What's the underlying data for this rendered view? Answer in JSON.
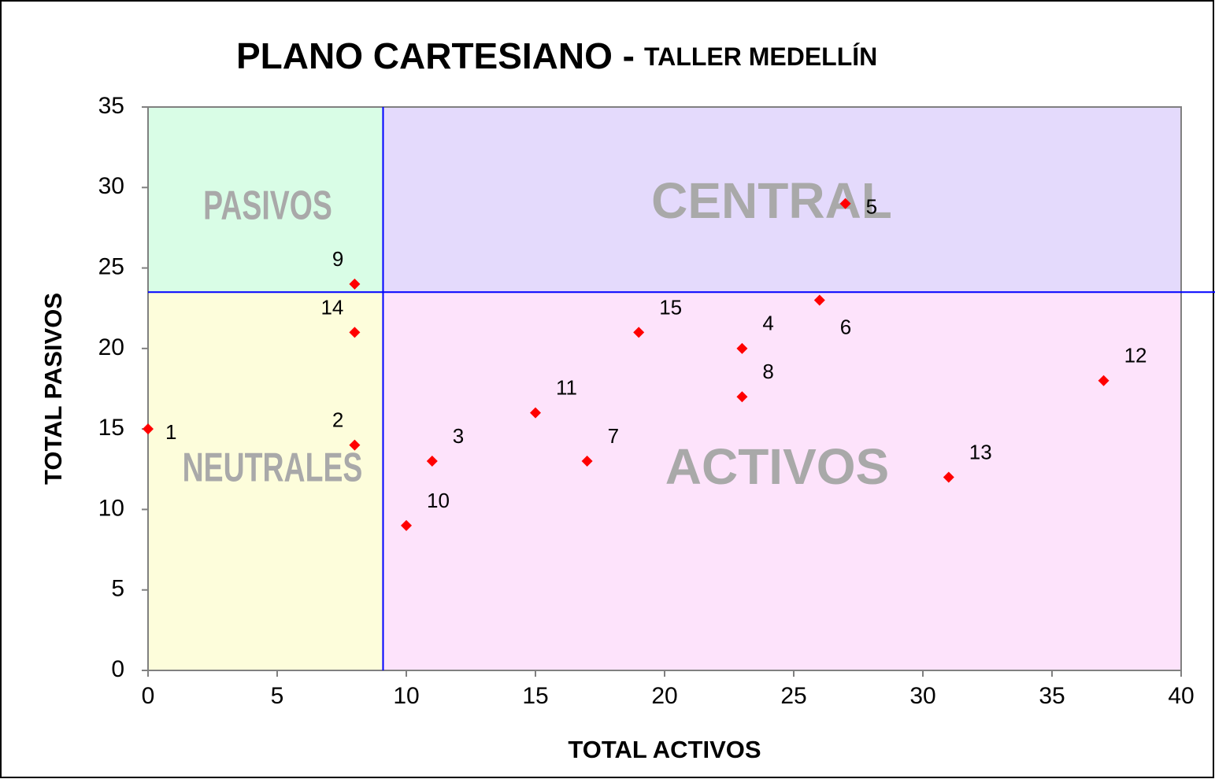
{
  "chart_data": {
    "type": "scatter",
    "title": "PLANO CARTESIANO -",
    "subtitle": "TALLER MEDELLÍN",
    "xlabel": "TOTAL ACTIVOS",
    "ylabel": "TOTAL PASIVOS",
    "x": [
      0,
      8,
      11,
      23,
      27,
      26,
      17,
      23,
      8,
      10,
      15,
      37,
      31,
      8,
      19
    ],
    "values": [
      15,
      14,
      13,
      20,
      29,
      23,
      13,
      17,
      24,
      9,
      16,
      18,
      12,
      21,
      21
    ],
    "point_labels": [
      "1",
      "2",
      "3",
      "4",
      "5",
      "6",
      "7",
      "8",
      "9",
      "10",
      "11",
      "12",
      "13",
      "14",
      "15"
    ],
    "color": "#ff0000",
    "xlim": [
      0,
      40
    ],
    "xticks": [
      0,
      5,
      10,
      15,
      20,
      25,
      30,
      35,
      40
    ],
    "ylim": [
      0,
      35
    ],
    "yticks": [
      0,
      5,
      10,
      15,
      20,
      25,
      30,
      35
    ],
    "dividers": {
      "x": 9.1,
      "y": 23.5,
      "color": "#0000ff"
    },
    "quadrant_labels": {
      "top_left": "PASIVOS",
      "top_right": "CENTRAL",
      "bottom_left": "NEUTRALES",
      "bottom_right": "ACTIVOS"
    },
    "quadrant_colors": {
      "top_left": "#d9fde6",
      "top_right": "#e4dafc",
      "bottom_left": "#fdfddb",
      "bottom_right": "#fde3fb"
    }
  }
}
